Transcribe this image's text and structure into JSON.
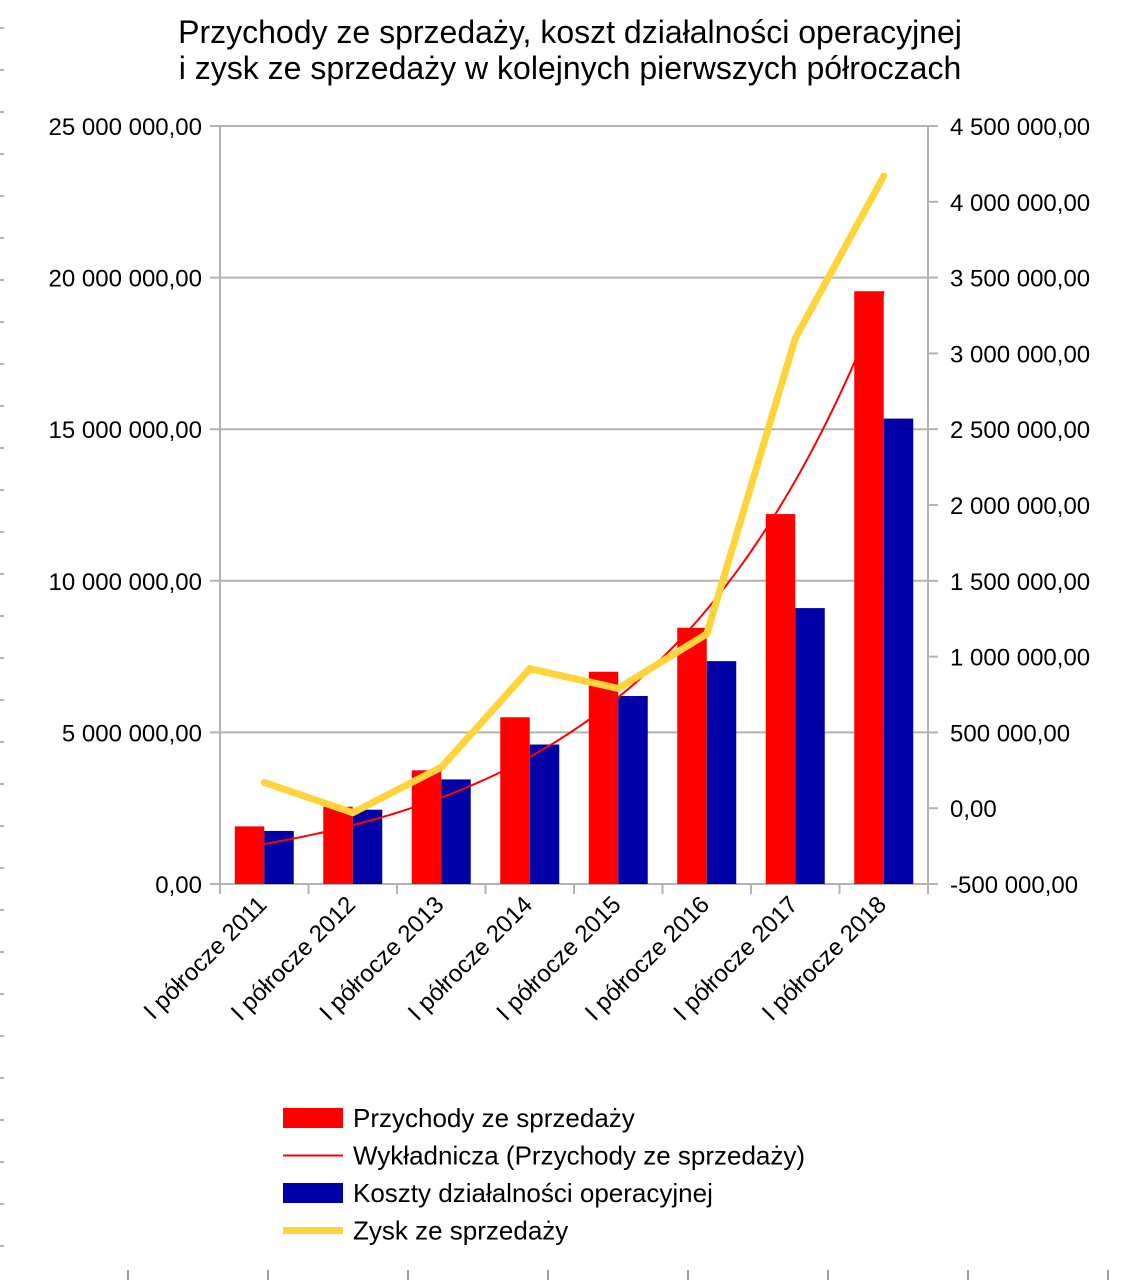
{
  "chart_data": {
    "type": "bar",
    "title_lines": [
      "Przychody ze sprzedaży, koszt działalności operacyjnej",
      "i zysk ze sprzedaży w kolejnych pierwszych półroczach"
    ],
    "categories": [
      "I półrocze 2011",
      "I półrocze 2012",
      "I półrocze 2013",
      "I półrocze 2014",
      "I półrocze 2015",
      "I półrocze 2016",
      "I półrocze 2017",
      "I półrocze 2018"
    ],
    "y_left": {
      "min": 0,
      "max": 25000000,
      "step": 5000000,
      "tick_labels": [
        "0,00",
        "5 000 000,00",
        "10 000 000,00",
        "15 000 000,00",
        "20 000 000,00",
        "25 000 000,00"
      ]
    },
    "y_right": {
      "min": -500000,
      "max": 4500000,
      "step": 500000,
      "tick_labels": [
        "-500 000,00",
        "0,00",
        "500 000,00",
        "1 000 000,00",
        "1 500 000,00",
        "2 000 000,00",
        "2 500 000,00",
        "3 000 000,00",
        "3 500 000,00",
        "4 000 000,00",
        "4 500 000,00"
      ]
    },
    "series": [
      {
        "name": "Przychody ze sprzedaży",
        "kind": "bar",
        "axis": "left",
        "color": "#ff0000",
        "values": [
          1900000,
          2550000,
          3750000,
          5500000,
          7000000,
          8450000,
          12200000,
          19550000
        ]
      },
      {
        "name": "Koszty działalności operacyjnej",
        "kind": "bar",
        "axis": "left",
        "color": "#0000a6",
        "values": [
          1750000,
          2450000,
          3450000,
          4600000,
          6200000,
          7350000,
          9100000,
          15350000
        ]
      },
      {
        "name": "Zysk ze sprzedaży",
        "kind": "line",
        "axis": "right",
        "color": "#ffd43b",
        "values": [
          170000,
          -30000,
          270000,
          920000,
          790000,
          1150000,
          3100000,
          4170000
        ]
      },
      {
        "name": "Wykładnicza (Przychody ze sprzedaży)",
        "kind": "trendline",
        "axis": "left",
        "color": "#ff0000",
        "a": 1320000,
        "b": 0.385
      }
    ],
    "legend": [
      {
        "label": "Przychody ze sprzedaży",
        "color": "#ff0000",
        "style": "box"
      },
      {
        "label": "Wykładnicza (Przychody ze sprzedaży)",
        "color": "#ff0000",
        "style": "thin-line"
      },
      {
        "label": "Koszty działalności operacyjnej",
        "color": "#0000a6",
        "style": "box"
      },
      {
        "label": "Zysk ze sprzedaży",
        "color": "#ffd43b",
        "style": "thick-line"
      }
    ],
    "legend_position": "bottom",
    "grid": true
  }
}
